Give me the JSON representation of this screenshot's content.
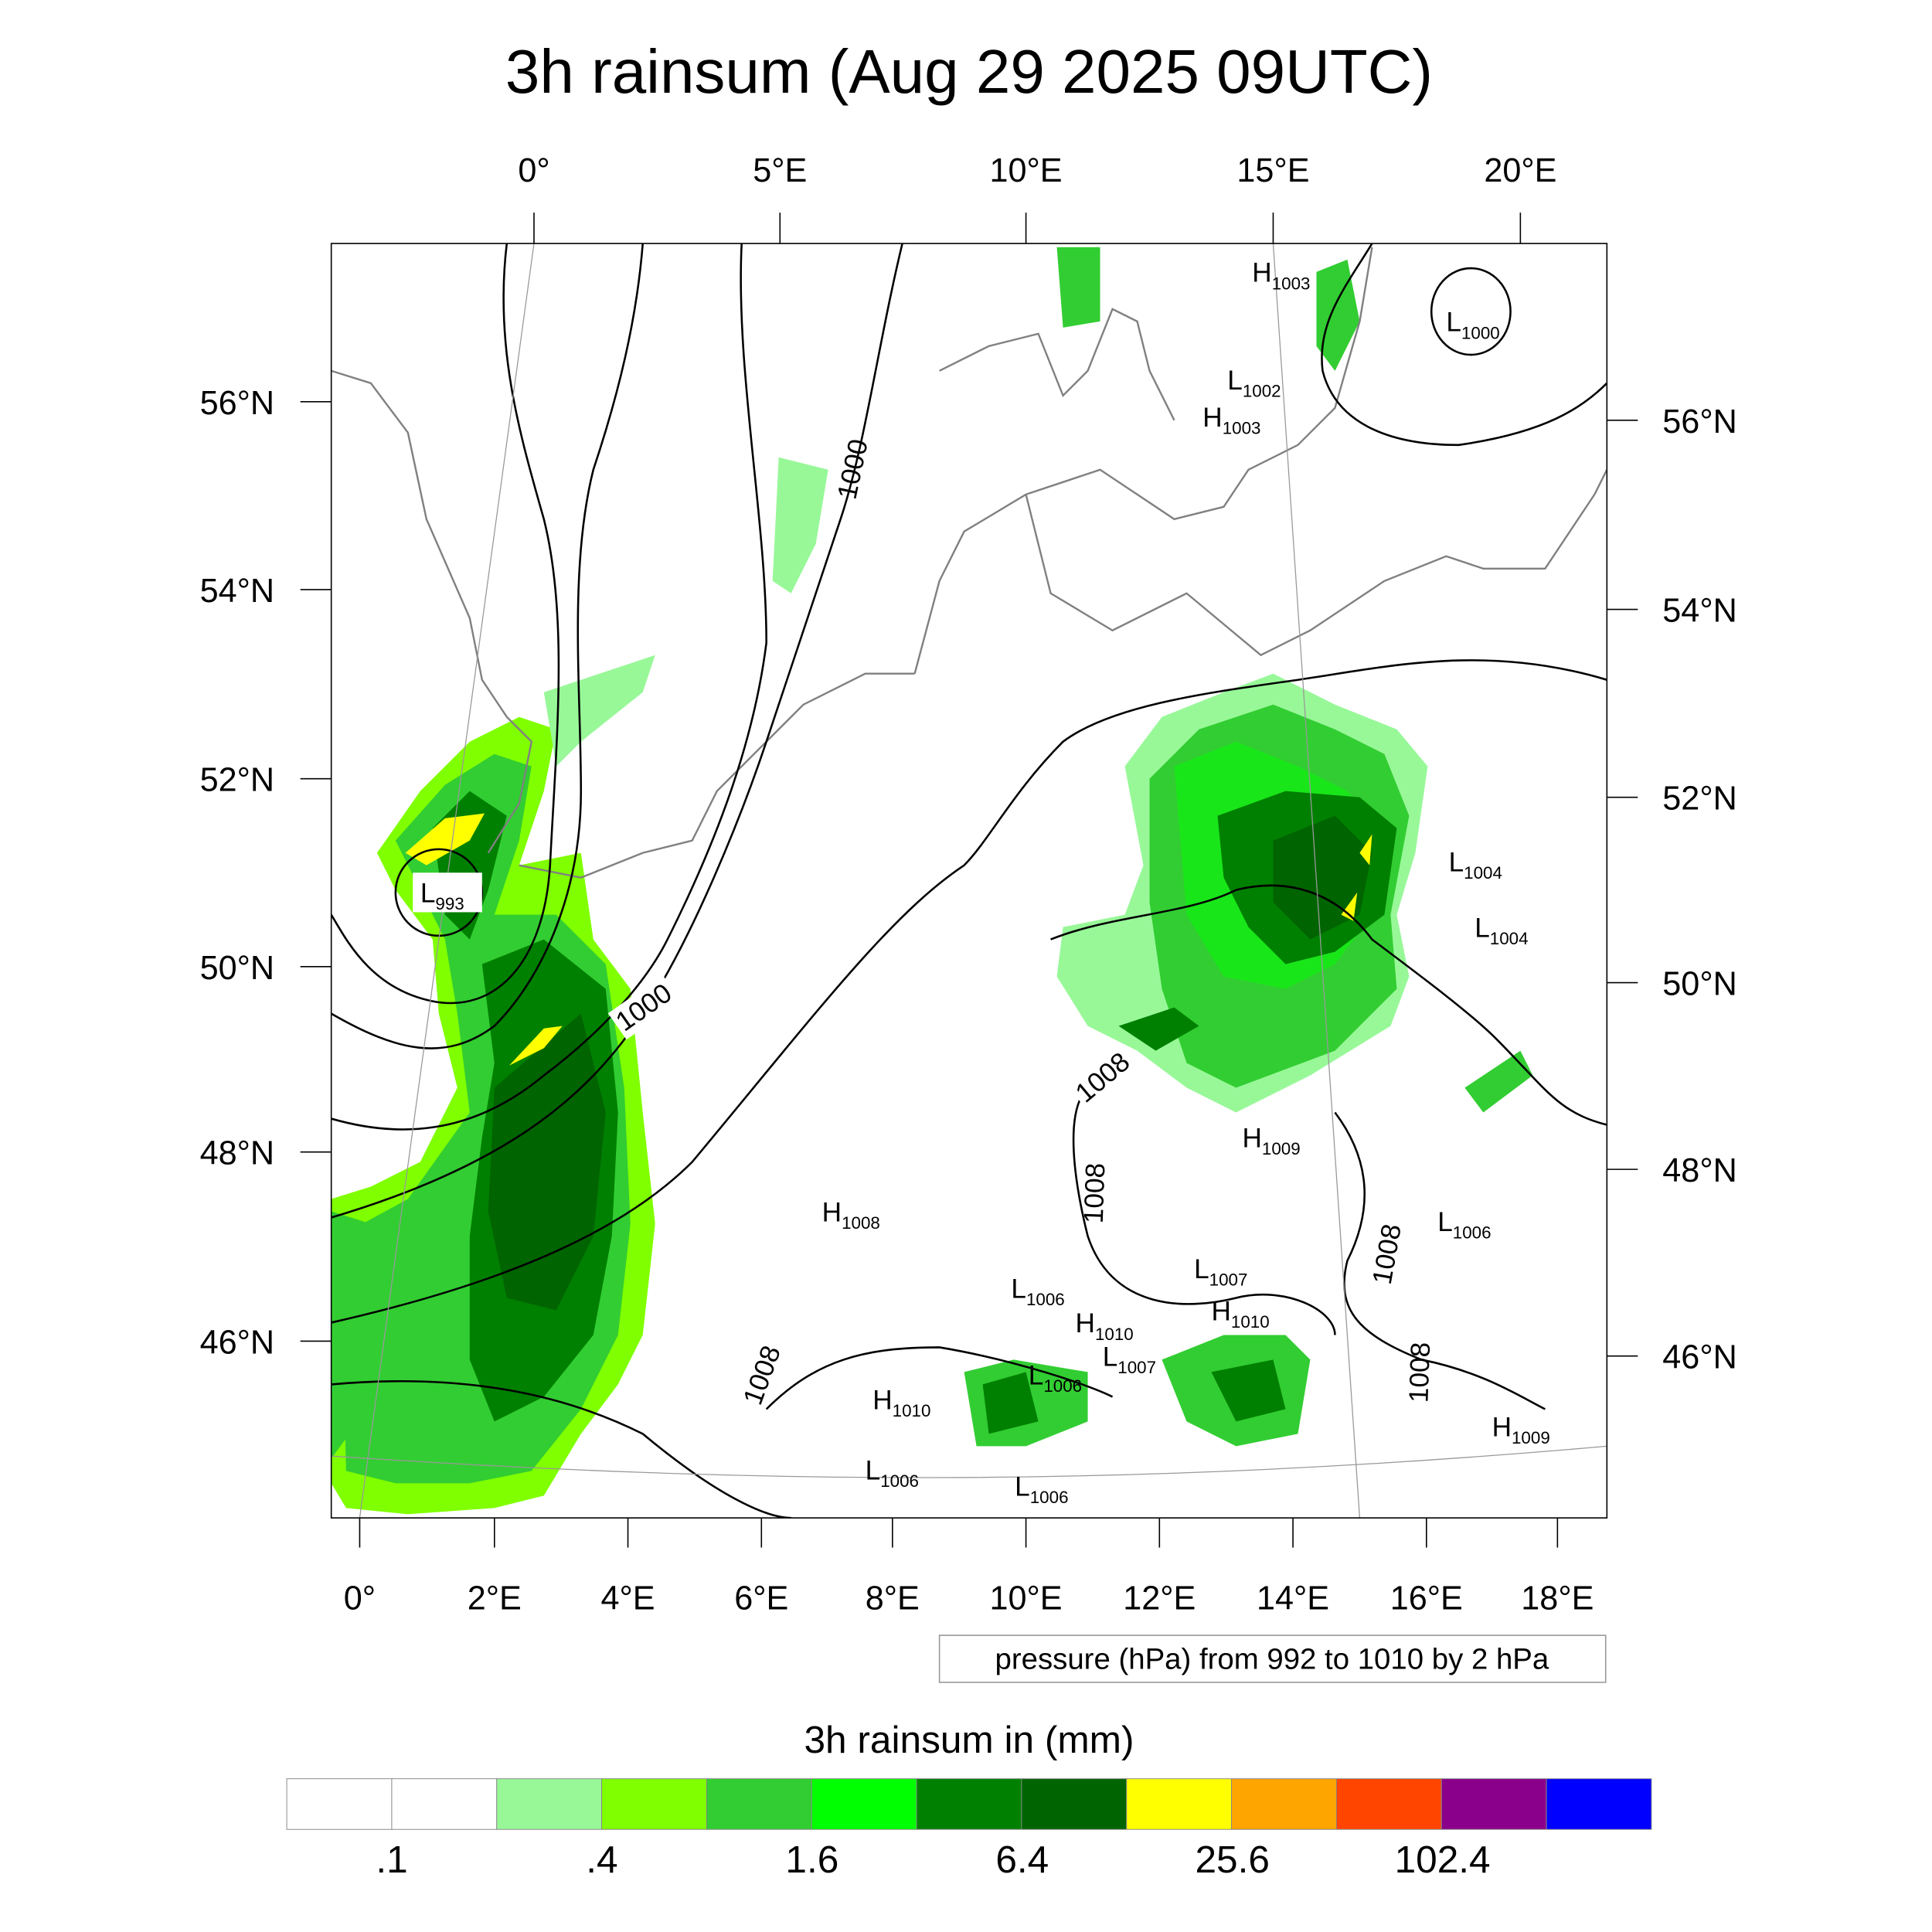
{
  "title": "3h rainsum (Aug 29 2025 09UTC)",
  "axes": {
    "top_lon": [
      "0°",
      "5°E",
      "10°E",
      "15°E",
      "20°E"
    ],
    "bottom_lon": [
      "0°",
      "2°E",
      "4°E",
      "6°E",
      "8°E",
      "10°E",
      "12°E",
      "14°E",
      "16°E",
      "18°E"
    ],
    "left_lat": [
      "56°N",
      "54°N",
      "52°N",
      "50°N",
      "48°N",
      "46°N"
    ],
    "right_lat": [
      "56°N",
      "54°N",
      "52°N",
      "50°N",
      "48°N",
      "46°N"
    ]
  },
  "pressure_centers": [
    {
      "type": "H",
      "value": "1003"
    },
    {
      "type": "L",
      "value": "1000"
    },
    {
      "type": "L",
      "value": "1002"
    },
    {
      "type": "H",
      "value": "1003"
    },
    {
      "type": "L",
      "value": "993"
    },
    {
      "type": "L",
      "value": "1004"
    },
    {
      "type": "L",
      "value": "1004"
    },
    {
      "type": "H",
      "value": "1009"
    },
    {
      "type": "H",
      "value": "1008"
    },
    {
      "type": "L",
      "value": "1006"
    },
    {
      "type": "L",
      "value": "1007"
    },
    {
      "type": "L",
      "value": "1006"
    },
    {
      "type": "H",
      "value": "1010"
    },
    {
      "type": "H",
      "value": "1010"
    },
    {
      "type": "L",
      "value": "1007"
    },
    {
      "type": "L",
      "value": "1006"
    },
    {
      "type": "H",
      "value": "1010"
    },
    {
      "type": "H",
      "value": "1009"
    },
    {
      "type": "L",
      "value": "1006"
    },
    {
      "type": "L",
      "value": "1006"
    }
  ],
  "contour_labels": [
    "1000",
    "1000",
    "1008",
    "1008",
    "1008",
    "1008",
    "1008"
  ],
  "contour_info": "pressure (hPa) from 992 to 1010 by 2 hPa",
  "colorbar": {
    "title": "3h rainsum in (mm)",
    "labels": [
      ".1",
      ".4",
      "1.6",
      "6.4",
      "25.6",
      "102.4"
    ],
    "colors": [
      "#ffffff",
      "#ffffff",
      "#98f898",
      "#80ff00",
      "#32cd32",
      "#00ff00",
      "#008000",
      "#006400",
      "#ffff00",
      "#ffa500",
      "#ff4500",
      "#8b008b",
      "#0000ff"
    ]
  }
}
